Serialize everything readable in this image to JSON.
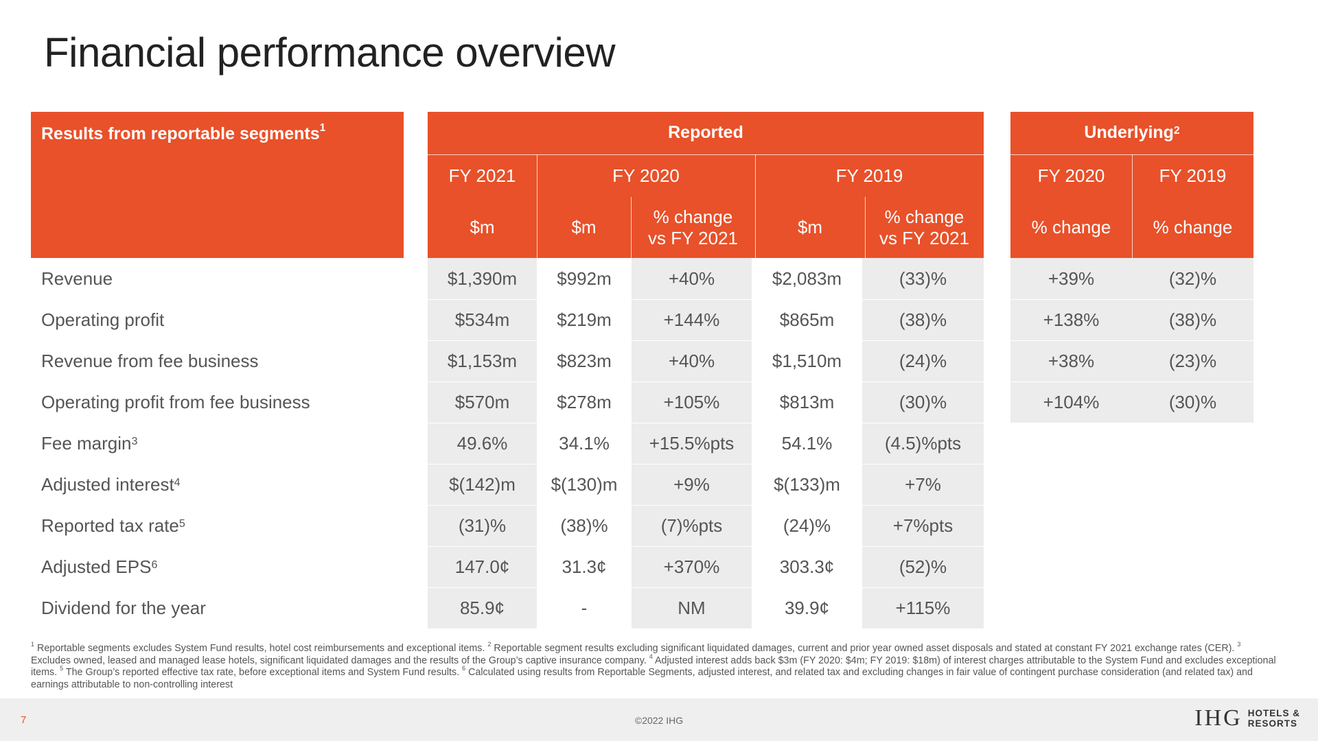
{
  "page": {
    "title": "Financial performance overview"
  },
  "header": {
    "segments_label": "Results from reportable segments",
    "segments_sup": "1",
    "reported_label": "Reported",
    "underlying_label": "Underlying",
    "underlying_sup": "2",
    "fy2021": "FY 2021",
    "fy2020": "FY 2020",
    "fy2019": "FY 2019",
    "u_fy2020": "FY 2020",
    "u_fy2019": "FY 2019",
    "col_m1": "$m",
    "col_m2": "$m",
    "col_change1_line1": "% change",
    "col_change1_line2": "vs FY 2021",
    "col_m3": "$m",
    "col_change2_line1": "% change",
    "col_change2_line2": "vs FY 2021",
    "u_change1": "% change",
    "u_change2": "% change"
  },
  "rows": [
    {
      "label": "Revenue",
      "sup": "",
      "fy21": "$1,390m",
      "fy20": "$992m",
      "chg20": "+40%",
      "fy19": "$2,083m",
      "chg19": "(33)%",
      "u20": "+39%",
      "u19": "(32)%"
    },
    {
      "label": "Operating profit",
      "sup": "",
      "fy21": "$534m",
      "fy20": "$219m",
      "chg20": "+144%",
      "fy19": "$865m",
      "chg19": "(38)%",
      "u20": "+138%",
      "u19": "(38)%"
    },
    {
      "label": "Revenue from fee business",
      "sup": "",
      "fy21": "$1,153m",
      "fy20": "$823m",
      "chg20": "+40%",
      "fy19": "$1,510m",
      "chg19": "(24)%",
      "u20": "+38%",
      "u19": "(23)%"
    },
    {
      "label": "Operating profit from fee business",
      "sup": "",
      "fy21": "$570m",
      "fy20": "$278m",
      "chg20": "+105%",
      "fy19": "$813m",
      "chg19": "(30)%",
      "u20": "+104%",
      "u19": "(30)%"
    },
    {
      "label": "Fee margin",
      "sup": "3",
      "fy21": "49.6%",
      "fy20": "34.1%",
      "chg20": "+15.5%pts",
      "fy19": "54.1%",
      "chg19": "(4.5)%pts",
      "u20": "",
      "u19": ""
    },
    {
      "label": "Adjusted interest",
      "sup": "4",
      "fy21": "$(142)m",
      "fy20": "$(130)m",
      "chg20": "+9%",
      "fy19": "$(133)m",
      "chg19": "+7%",
      "u20": "",
      "u19": ""
    },
    {
      "label": "Reported tax rate",
      "sup": "5",
      "fy21": "(31)%",
      "fy20": "(38)%",
      "chg20": "(7)%pts",
      "fy19": "(24)%",
      "chg19": "+7%pts",
      "u20": "",
      "u19": ""
    },
    {
      "label": "Adjusted EPS",
      "sup": "6",
      "fy21": "147.0¢",
      "fy20": "31.3¢",
      "chg20": "+370%",
      "fy19": "303.3¢",
      "chg19": "(52)%",
      "u20": "",
      "u19": ""
    },
    {
      "label": "Dividend for the year",
      "sup": "",
      "fy21": "85.9¢",
      "fy20": "-",
      "chg20": "NM",
      "fy19": "39.9¢",
      "chg19": "+115%",
      "u20": "",
      "u19": ""
    }
  ],
  "footnotes": [
    {
      "sup": "1",
      "text": "Reportable segments excludes System Fund results, hotel cost reimbursements and exceptional items."
    },
    {
      "sup": "2",
      "text": "Reportable segment results excluding significant liquidated damages, current and prior year owned asset disposals and stated at constant FY 2021 exchange rates (CER)."
    },
    {
      "sup": "3",
      "text": "Excludes owned, leased and managed lease hotels, significant liquidated damages and the results of the Group’s captive insurance company."
    },
    {
      "sup": "4",
      "text": "Adjusted interest adds back $3m (FY 2020: $4m; FY 2019: $18m) of interest charges attributable to the System Fund and excludes exceptional items."
    },
    {
      "sup": "5",
      "text": "The Group’s reported effective tax rate, before exceptional items and System Fund results."
    },
    {
      "sup": "6",
      "text": "Calculated using results from Reportable Segments, adjusted interest, and related tax and excluding changes in fair value of contingent purchase consideration (and related tax) and earnings attributable to non-controlling interest"
    }
  ],
  "footer": {
    "page_number": "7",
    "copyright": "©2022 IHG",
    "logo_mark": "IHG",
    "logo_line1": "HOTELS &",
    "logo_line2": "RESORTS"
  },
  "colors": {
    "accent": "#e8512a",
    "shade": "#ececec",
    "text": "#555555"
  }
}
